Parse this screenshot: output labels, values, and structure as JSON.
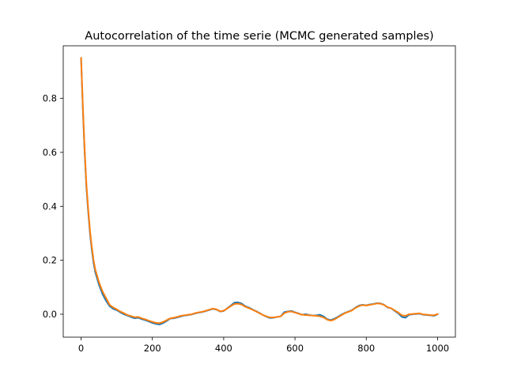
{
  "chart_data": {
    "type": "line",
    "title": "Autocorrelation of the time serie (MCMC generated samples)",
    "xlabel": "",
    "ylabel": "",
    "xlim": [
      -50,
      1050
    ],
    "ylim": [
      -0.085,
      0.995
    ],
    "x_ticks": [
      0,
      200,
      400,
      600,
      800,
      1000
    ],
    "y_ticks": [
      0.0,
      0.2,
      0.4,
      0.6,
      0.8
    ],
    "x_tick_labels": [
      "0",
      "200",
      "400",
      "600",
      "800",
      "1000"
    ],
    "y_tick_labels": [
      "0.0",
      "0.2",
      "0.4",
      "0.6",
      "0.8"
    ],
    "grid": false,
    "legend": "none",
    "series": [
      {
        "color": "#1f77b4",
        "x": [
          0,
          5,
          10,
          15,
          20,
          25,
          30,
          35,
          40,
          50,
          60,
          70,
          80,
          90,
          100,
          110,
          120,
          130,
          140,
          150,
          160,
          170,
          180,
          190,
          200,
          210,
          220,
          230,
          240,
          250,
          260,
          270,
          280,
          290,
          300,
          310,
          320,
          330,
          340,
          350,
          360,
          370,
          380,
          390,
          400,
          410,
          420,
          430,
          440,
          450,
          460,
          470,
          480,
          490,
          500,
          510,
          520,
          530,
          540,
          550,
          560,
          570,
          580,
          590,
          600,
          610,
          620,
          630,
          640,
          650,
          660,
          670,
          680,
          690,
          700,
          710,
          720,
          730,
          740,
          750,
          760,
          770,
          780,
          790,
          800,
          810,
          820,
          830,
          840,
          850,
          860,
          870,
          880,
          890,
          900,
          910,
          920,
          930,
          940,
          950,
          960,
          970,
          980,
          990,
          1000
        ],
        "y": [
          0.95,
          0.76,
          0.6,
          0.47,
          0.38,
          0.3,
          0.24,
          0.19,
          0.155,
          0.11,
          0.075,
          0.05,
          0.03,
          0.02,
          0.015,
          0.007,
          0.0,
          -0.005,
          -0.01,
          -0.015,
          -0.013,
          -0.018,
          -0.022,
          -0.027,
          -0.032,
          -0.036,
          -0.038,
          -0.033,
          -0.025,
          -0.016,
          -0.015,
          -0.012,
          -0.008,
          -0.005,
          -0.003,
          -0.001,
          0.003,
          0.006,
          0.008,
          0.012,
          0.016,
          0.02,
          0.017,
          0.01,
          0.012,
          0.022,
          0.032,
          0.043,
          0.044,
          0.04,
          0.03,
          0.025,
          0.018,
          0.012,
          0.005,
          -0.003,
          -0.009,
          -0.014,
          -0.013,
          -0.01,
          -0.008,
          0.008,
          0.01,
          0.012,
          0.007,
          0.003,
          -0.002,
          0.0,
          -0.003,
          -0.005,
          -0.004,
          -0.002,
          -0.008,
          -0.018,
          -0.022,
          -0.017,
          -0.01,
          -0.002,
          0.005,
          0.01,
          0.015,
          0.025,
          0.032,
          0.035,
          0.033,
          0.036,
          0.038,
          0.041,
          0.04,
          0.035,
          0.025,
          0.022,
          0.012,
          0.003,
          -0.01,
          -0.013,
          -0.002,
          0.0,
          0.001,
          0.002,
          -0.002,
          -0.003,
          -0.004,
          -0.006,
          0.0
        ]
      },
      {
        "color": "#ff7f0e",
        "x": [
          0,
          5,
          10,
          15,
          20,
          25,
          30,
          35,
          40,
          50,
          60,
          70,
          80,
          90,
          100,
          110,
          120,
          130,
          140,
          150,
          160,
          170,
          180,
          190,
          200,
          210,
          220,
          230,
          240,
          250,
          260,
          270,
          280,
          290,
          300,
          310,
          320,
          330,
          340,
          350,
          360,
          370,
          380,
          390,
          400,
          410,
          420,
          430,
          440,
          450,
          460,
          470,
          480,
          490,
          500,
          510,
          520,
          530,
          540,
          550,
          560,
          570,
          580,
          590,
          600,
          610,
          620,
          630,
          640,
          650,
          660,
          670,
          680,
          690,
          700,
          710,
          720,
          730,
          740,
          750,
          760,
          770,
          780,
          790,
          800,
          810,
          820,
          830,
          840,
          850,
          860,
          870,
          880,
          890,
          900,
          910,
          920,
          930,
          940,
          950,
          960,
          970,
          980,
          990,
          1000
        ],
        "y": [
          0.95,
          0.77,
          0.61,
          0.48,
          0.39,
          0.31,
          0.25,
          0.2,
          0.165,
          0.12,
          0.085,
          0.06,
          0.035,
          0.025,
          0.018,
          0.01,
          0.004,
          -0.003,
          -0.007,
          -0.011,
          -0.01,
          -0.015,
          -0.019,
          -0.024,
          -0.028,
          -0.032,
          -0.033,
          -0.029,
          -0.022,
          -0.015,
          -0.013,
          -0.01,
          -0.006,
          -0.004,
          -0.002,
          0.0,
          0.004,
          0.007,
          0.009,
          0.013,
          0.017,
          0.021,
          0.018,
          0.011,
          0.013,
          0.021,
          0.03,
          0.038,
          0.039,
          0.036,
          0.028,
          0.023,
          0.017,
          0.011,
          0.004,
          -0.003,
          -0.008,
          -0.012,
          -0.012,
          -0.01,
          -0.008,
          0.004,
          0.009,
          0.01,
          0.006,
          0.002,
          -0.002,
          -0.003,
          -0.004,
          -0.005,
          -0.006,
          -0.008,
          -0.012,
          -0.02,
          -0.024,
          -0.02,
          -0.012,
          -0.004,
          0.004,
          0.009,
          0.014,
          0.024,
          0.03,
          0.034,
          0.032,
          0.035,
          0.037,
          0.04,
          0.039,
          0.034,
          0.026,
          0.022,
          0.014,
          0.006,
          -0.004,
          -0.006,
          0.0,
          0.001,
          0.002,
          0.003,
          -0.001,
          -0.002,
          -0.003,
          -0.004,
          0.001
        ]
      }
    ]
  }
}
